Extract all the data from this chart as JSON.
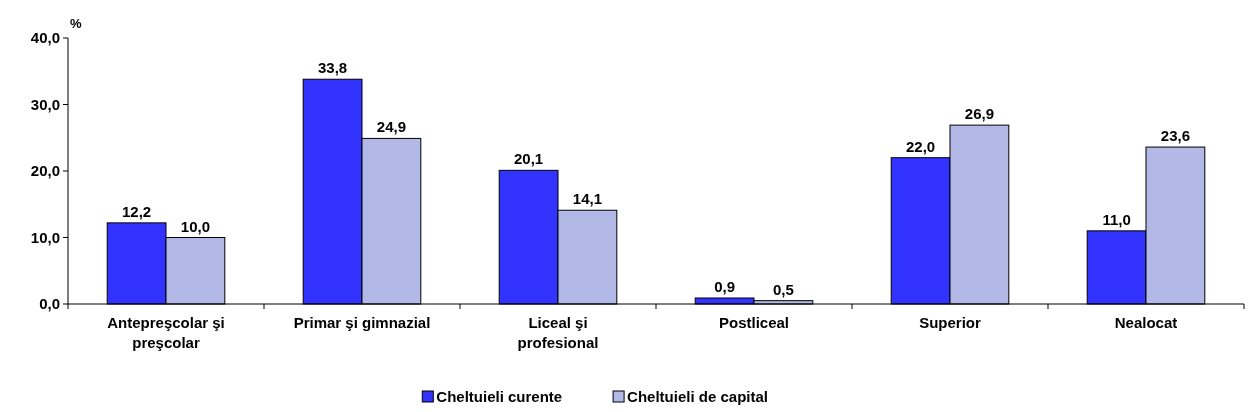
{
  "chart_data": {
    "type": "bar",
    "ylabel": "%",
    "categories": [
      "Antepreşcolar şi\npreşcolar",
      "Primar şi gimnazial",
      "Liceal şi\nprofesional",
      "Postliceal",
      "Superior",
      "Nealocat"
    ],
    "series": [
      {
        "name": "Cheltuieli curente",
        "color": "#3333ff",
        "values": [
          12.2,
          33.8,
          20.1,
          0.9,
          22.0,
          11.0
        ],
        "value_labels": [
          "12,2",
          "33,8",
          "20,1",
          "0,9",
          "22,0",
          "11,0"
        ]
      },
      {
        "name": "Cheltuieli de capital",
        "color": "#b3b9e6",
        "values": [
          10.0,
          24.9,
          14.1,
          0.5,
          26.9,
          23.6
        ],
        "value_labels": [
          "10,0",
          "24,9",
          "14,1",
          "0,5",
          "26,9",
          "23,6"
        ]
      }
    ],
    "ylim": [
      0,
      40
    ],
    "yticks": [
      {
        "value": 0,
        "label": "0,0"
      },
      {
        "value": 10,
        "label": "10,0"
      },
      {
        "value": 20,
        "label": "20,0"
      },
      {
        "value": 30,
        "label": "30,0"
      },
      {
        "value": 40,
        "label": "40,0"
      }
    ],
    "grid": false,
    "legend": "bottom"
  }
}
